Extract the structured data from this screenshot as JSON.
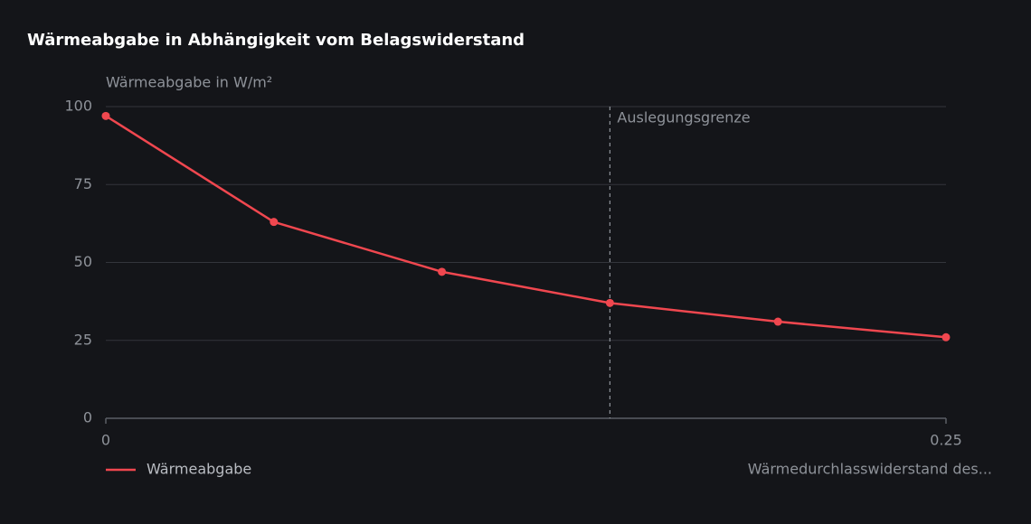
{
  "chart_data": {
    "type": "line",
    "title": "Wärmeabgabe in Abhängigkeit vom Belagswiderstand",
    "y_label": "Wärmeabgabe in W/m²",
    "x_label": "Wärmedurchlasswiderstand des...",
    "x": [
      0,
      0.05,
      0.1,
      0.15,
      0.2,
      0.25
    ],
    "series": [
      {
        "name": "Wärmeabgabe",
        "color": "#f0474f",
        "values": [
          97,
          63,
          47,
          37,
          31,
          26
        ]
      }
    ],
    "xlim": [
      0,
      0.25
    ],
    "xticks": [
      0,
      0.25
    ],
    "ylim": [
      0,
      100
    ],
    "yticks": [
      0,
      25,
      50,
      75,
      100
    ],
    "grid": true,
    "annotations": [
      {
        "x": 0.15,
        "label": "Auslegungsgrenze"
      }
    ]
  }
}
